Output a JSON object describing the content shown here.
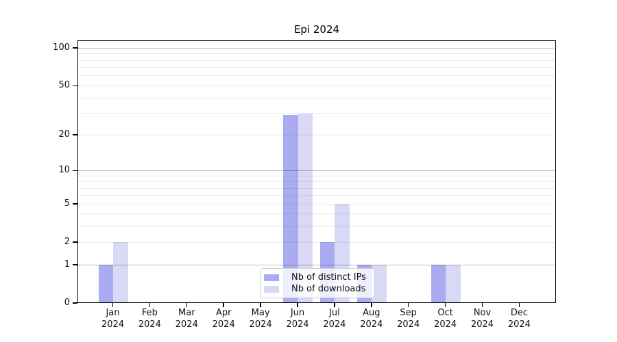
{
  "title": "Epi 2024",
  "chart_data": {
    "type": "bar",
    "title": "Epi 2024",
    "categories": [
      "Jan 2024",
      "Feb 2024",
      "Mar 2024",
      "Apr 2024",
      "May 2024",
      "Jun 2024",
      "Jul 2024",
      "Aug 2024",
      "Sep 2024",
      "Oct 2024",
      "Nov 2024",
      "Dec 2024"
    ],
    "series": [
      {
        "name": "Nb of distinct IPs",
        "color": "#ababf2",
        "values": [
          1,
          0,
          0,
          0,
          0,
          29,
          2,
          1,
          0,
          1,
          0,
          0
        ]
      },
      {
        "name": "Nb of downloads",
        "color": "#d9d9f6",
        "values": [
          2,
          0,
          0,
          0,
          0,
          30,
          5,
          1,
          0,
          1,
          0,
          0
        ]
      }
    ],
    "xlabel": "",
    "ylabel": "",
    "yscale": "log1p",
    "ylim": [
      0,
      115
    ],
    "yticks": [
      0,
      1,
      2,
      5,
      10,
      20,
      50,
      100
    ],
    "major_gridlines": [
      1,
      10,
      100
    ],
    "minor_gridlines": [
      2,
      3,
      4,
      5,
      6,
      7,
      8,
      9,
      20,
      30,
      40,
      50,
      60,
      70,
      80,
      90
    ],
    "grid": true,
    "legend_position": "lower center"
  }
}
